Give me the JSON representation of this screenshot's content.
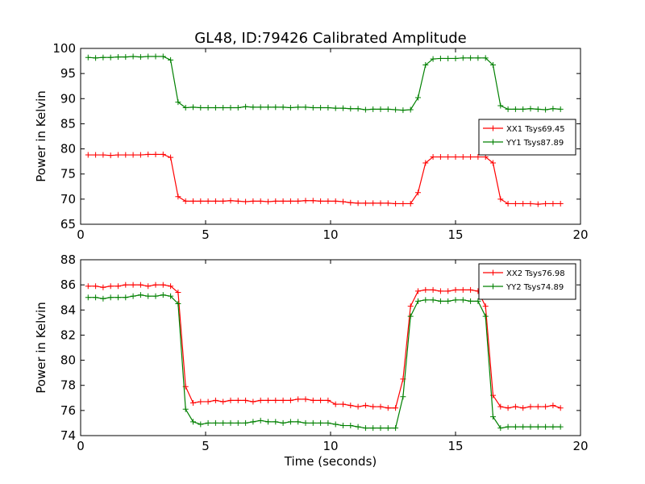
{
  "figure": {
    "title": "GL48, ID:79426 Calibrated Amplitude"
  },
  "chart_data": [
    {
      "type": "line",
      "title": "GL48, ID:79426 Calibrated Amplitude",
      "xlabel": "",
      "ylabel": "Power in Kelvin",
      "xlim": [
        0,
        20
      ],
      "ylim": [
        65,
        100
      ],
      "xticks": [
        0,
        5,
        10,
        15,
        20
      ],
      "yticks": [
        65,
        70,
        75,
        80,
        85,
        90,
        95,
        100
      ],
      "grid": false,
      "legend_position": "center-right",
      "x": [
        0.3,
        0.6,
        0.9,
        1.2,
        1.5,
        1.8,
        2.1,
        2.4,
        2.7,
        3.0,
        3.3,
        3.6,
        3.9,
        4.2,
        4.5,
        4.8,
        5.1,
        5.4,
        5.7,
        6.0,
        6.3,
        6.6,
        6.9,
        7.2,
        7.5,
        7.8,
        8.1,
        8.4,
        8.7,
        9.0,
        9.3,
        9.6,
        9.9,
        10.2,
        10.5,
        10.8,
        11.1,
        11.4,
        11.7,
        12.0,
        12.3,
        12.6,
        12.9,
        13.2,
        13.5,
        13.8,
        14.1,
        14.4,
        14.7,
        15.0,
        15.3,
        15.6,
        15.9,
        16.2,
        16.5,
        16.8,
        17.1,
        17.4,
        17.7,
        18.0,
        18.3,
        18.6,
        18.9,
        19.2
      ],
      "series": [
        {
          "name": "XX1 Tsys69.45",
          "color": "#ff0000",
          "values": [
            78.8,
            78.8,
            78.8,
            78.7,
            78.8,
            78.8,
            78.8,
            78.8,
            78.9,
            78.9,
            78.9,
            78.3,
            70.5,
            69.6,
            69.6,
            69.6,
            69.6,
            69.6,
            69.6,
            69.7,
            69.6,
            69.5,
            69.6,
            69.6,
            69.5,
            69.6,
            69.6,
            69.6,
            69.6,
            69.7,
            69.7,
            69.6,
            69.6,
            69.6,
            69.5,
            69.3,
            69.2,
            69.2,
            69.2,
            69.2,
            69.2,
            69.1,
            69.1,
            69.1,
            71.3,
            77.2,
            78.4,
            78.4,
            78.4,
            78.4,
            78.4,
            78.4,
            78.4,
            78.4,
            77.2,
            70.0,
            69.1,
            69.1,
            69.1,
            69.1,
            69.0,
            69.1,
            69.1,
            69.1
          ]
        },
        {
          "name": "YY1 Tsys87.89",
          "color": "#008000",
          "values": [
            98.2,
            98.1,
            98.2,
            98.2,
            98.3,
            98.3,
            98.4,
            98.3,
            98.4,
            98.4,
            98.4,
            97.7,
            89.3,
            88.2,
            88.3,
            88.2,
            88.2,
            88.2,
            88.2,
            88.2,
            88.2,
            88.4,
            88.3,
            88.3,
            88.3,
            88.3,
            88.3,
            88.2,
            88.3,
            88.3,
            88.2,
            88.2,
            88.2,
            88.1,
            88.1,
            88.0,
            88.0,
            87.8,
            87.9,
            87.9,
            87.9,
            87.8,
            87.7,
            87.8,
            90.2,
            96.7,
            97.9,
            98.0,
            98.0,
            98.0,
            98.1,
            98.1,
            98.1,
            98.1,
            96.7,
            88.6,
            87.9,
            87.9,
            87.9,
            88.0,
            87.9,
            87.8,
            88.0,
            87.9
          ]
        }
      ]
    },
    {
      "type": "line",
      "title": "",
      "xlabel": "Time (seconds)",
      "ylabel": "Power in Kelvin",
      "xlim": [
        0,
        20
      ],
      "ylim": [
        74,
        88
      ],
      "xticks": [
        0,
        5,
        10,
        15,
        20
      ],
      "yticks": [
        74,
        76,
        78,
        80,
        82,
        84,
        86,
        88
      ],
      "grid": false,
      "legend_position": "top-right",
      "x": [
        0.3,
        0.6,
        0.9,
        1.2,
        1.5,
        1.8,
        2.1,
        2.4,
        2.7,
        3.0,
        3.3,
        3.6,
        3.9,
        4.2,
        4.5,
        4.8,
        5.1,
        5.4,
        5.7,
        6.0,
        6.3,
        6.6,
        6.9,
        7.2,
        7.5,
        7.8,
        8.1,
        8.4,
        8.7,
        9.0,
        9.3,
        9.6,
        9.9,
        10.2,
        10.5,
        10.8,
        11.1,
        11.4,
        11.7,
        12.0,
        12.3,
        12.6,
        12.9,
        13.2,
        13.5,
        13.8,
        14.1,
        14.4,
        14.7,
        15.0,
        15.3,
        15.6,
        15.9,
        16.2,
        16.5,
        16.8,
        17.1,
        17.4,
        17.7,
        18.0,
        18.3,
        18.6,
        18.9,
        19.2
      ],
      "series": [
        {
          "name": "XX2 Tsys76.98",
          "color": "#ff0000",
          "values": [
            85.9,
            85.9,
            85.8,
            85.9,
            85.9,
            86.0,
            86.0,
            86.0,
            85.9,
            86.0,
            86.0,
            85.9,
            85.4,
            77.9,
            76.6,
            76.7,
            76.7,
            76.8,
            76.7,
            76.8,
            76.8,
            76.8,
            76.7,
            76.8,
            76.8,
            76.8,
            76.8,
            76.8,
            76.9,
            76.9,
            76.8,
            76.8,
            76.8,
            76.5,
            76.5,
            76.4,
            76.3,
            76.4,
            76.3,
            76.3,
            76.2,
            76.2,
            78.5,
            84.3,
            85.5,
            85.6,
            85.6,
            85.5,
            85.5,
            85.6,
            85.6,
            85.6,
            85.5,
            84.3,
            77.2,
            76.3,
            76.2,
            76.3,
            76.2,
            76.3,
            76.3,
            76.3,
            76.4,
            76.2
          ]
        },
        {
          "name": "YY2 Tsys74.89",
          "color": "#008000",
          "values": [
            85.0,
            85.0,
            84.9,
            85.0,
            85.0,
            85.0,
            85.1,
            85.2,
            85.1,
            85.1,
            85.2,
            85.1,
            84.5,
            76.1,
            75.1,
            74.9,
            75.0,
            75.0,
            75.0,
            75.0,
            75.0,
            75.0,
            75.1,
            75.2,
            75.1,
            75.1,
            75.0,
            75.1,
            75.1,
            75.0,
            75.0,
            75.0,
            75.0,
            74.9,
            74.8,
            74.8,
            74.7,
            74.6,
            74.6,
            74.6,
            74.6,
            74.6,
            77.1,
            83.5,
            84.7,
            84.8,
            84.8,
            84.7,
            84.7,
            84.8,
            84.8,
            84.7,
            84.7,
            83.5,
            75.5,
            74.6,
            74.7,
            74.7,
            74.7,
            74.7,
            74.7,
            74.7,
            74.7,
            74.7
          ]
        }
      ]
    }
  ]
}
